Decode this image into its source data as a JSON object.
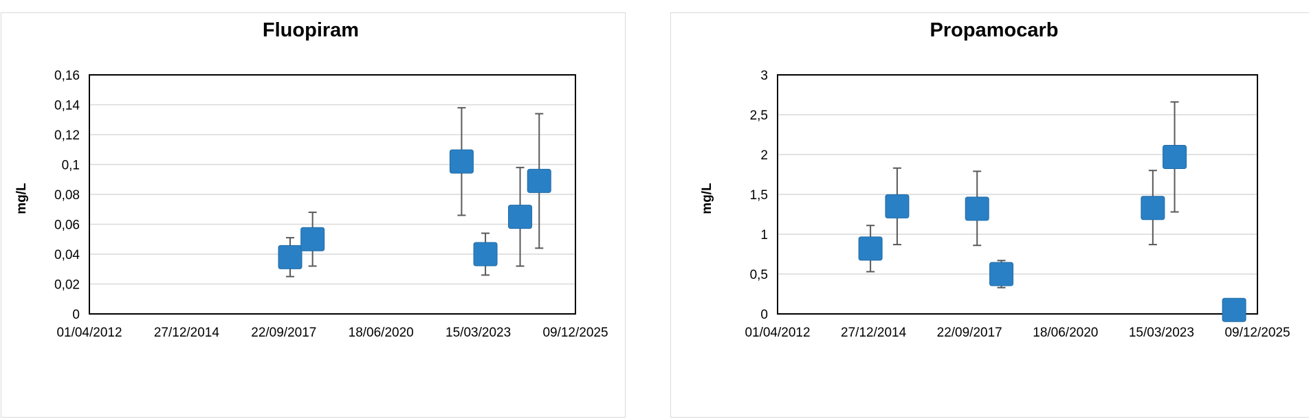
{
  "charts": [
    {
      "chart_data": {
        "type": "scatter",
        "title": "Fluopiram",
        "ylabel": "mg/L",
        "xlabel": "",
        "xlim": [
          "2012-04-01",
          "2025-12-09"
        ],
        "xticks": [
          "01/04/2012",
          "27/12/2014",
          "22/09/2017",
          "18/06/2020",
          "15/03/2023",
          "09/12/2025"
        ],
        "ylim": [
          0,
          0.16
        ],
        "yticks": [
          "0",
          "0,02",
          "0,04",
          "0,06",
          "0,08",
          "0,1",
          "0,12",
          "0,14",
          "0,16"
        ],
        "grid": true,
        "points": [
          {
            "x": "2017-11-26",
            "y": 0.038,
            "err_low": 0.025,
            "err_high": 0.051
          },
          {
            "x": "2018-07-15",
            "y": 0.05,
            "err_low": 0.032,
            "err_high": 0.068
          },
          {
            "x": "2022-09-25",
            "y": 0.102,
            "err_low": 0.066,
            "err_high": 0.138
          },
          {
            "x": "2023-05-28",
            "y": 0.04,
            "err_low": 0.026,
            "err_high": 0.054
          },
          {
            "x": "2024-05-19",
            "y": 0.065,
            "err_low": 0.032,
            "err_high": 0.098
          },
          {
            "x": "2024-12-01",
            "y": 0.089,
            "err_low": 0.044,
            "err_high": 0.134
          }
        ]
      }
    },
    {
      "chart_data": {
        "type": "scatter",
        "title": "Propamocarb",
        "ylabel": "mg/L",
        "xlabel": "",
        "xlim": [
          "2012-04-01",
          "2025-12-09"
        ],
        "xticks": [
          "01/04/2012",
          "27/12/2014",
          "22/09/2017",
          "18/06/2020",
          "15/03/2023",
          "09/12/2025"
        ],
        "ylim": [
          0,
          3
        ],
        "yticks": [
          "0",
          "0,5",
          "1",
          "1,5",
          "2",
          "2,5",
          "3"
        ],
        "grid": true,
        "points": [
          {
            "x": "2014-11-25",
            "y": 0.82,
            "err_low": 0.53,
            "err_high": 1.11
          },
          {
            "x": "2015-08-30",
            "y": 1.35,
            "err_low": 0.87,
            "err_high": 1.83
          },
          {
            "x": "2017-12-10",
            "y": 1.32,
            "err_low": 0.86,
            "err_high": 1.79
          },
          {
            "x": "2018-08-20",
            "y": 0.5,
            "err_low": 0.33,
            "err_high": 0.67
          },
          {
            "x": "2022-12-15",
            "y": 1.33,
            "err_low": 0.87,
            "err_high": 1.8
          },
          {
            "x": "2023-07-30",
            "y": 1.97,
            "err_low": 1.28,
            "err_high": 2.66
          },
          {
            "x": "2025-04-10",
            "y": 0.05,
            "err_low": 0.05,
            "err_high": 0.05
          }
        ]
      }
    }
  ],
  "colors": {
    "marker": "#2a80c4",
    "marker_edge": "#1f6aa6",
    "errorbar": "#595959",
    "grid": "#d9d9d9",
    "axis": "#000000"
  }
}
